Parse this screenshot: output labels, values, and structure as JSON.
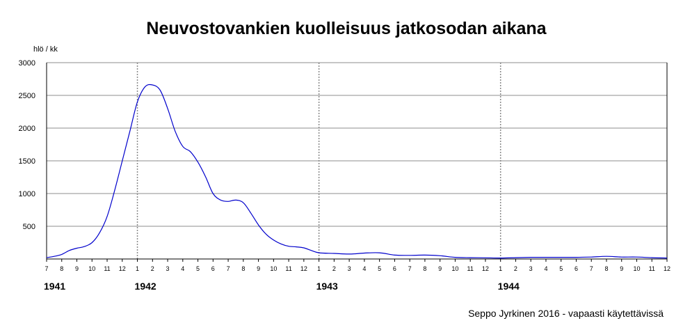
{
  "chart_data": {
    "type": "line",
    "title": "Neuvostovankien kuolleisuus jatkosodan aikana",
    "ylabel": "hlö / kk",
    "xlabel": "",
    "ylim": [
      0,
      3000
    ],
    "yticks": [
      500,
      1000,
      1500,
      2000,
      2500,
      3000
    ],
    "grid": true,
    "x_month_labels": [
      "7",
      "8",
      "9",
      "10",
      "11",
      "12",
      "1",
      "2",
      "3",
      "4",
      "5",
      "6",
      "7",
      "8",
      "9",
      "10",
      "11",
      "12",
      "1",
      "2",
      "3",
      "4",
      "5",
      "6",
      "7",
      "8",
      "9",
      "10",
      "11",
      "12",
      "1",
      "2",
      "3",
      "4",
      "5",
      "6",
      "7",
      "8",
      "9",
      "10",
      "11",
      "12"
    ],
    "years": [
      {
        "label": "1941",
        "month_index": 0
      },
      {
        "label": "1942",
        "month_index": 6
      },
      {
        "label": "1943",
        "month_index": 18
      },
      {
        "label": "1944",
        "month_index": 30
      }
    ],
    "year_divider_month_index": [
      6,
      18,
      30
    ],
    "series": [
      {
        "x": [
          0,
          0.5,
          1,
          1.5,
          2,
          2.5,
          3,
          3.5,
          4,
          4.5,
          5,
          5.5,
          6,
          6.5,
          7,
          7.5,
          8,
          8.5,
          9,
          9.5,
          10,
          10.5,
          11,
          11.5,
          12,
          12.5,
          13,
          13.5,
          14,
          14.5,
          15,
          15.5,
          16,
          16.5,
          17,
          17.5,
          18,
          19,
          20,
          21,
          22,
          23,
          24,
          25,
          26,
          27,
          28,
          29,
          30,
          31,
          32,
          33,
          34,
          35,
          36,
          37,
          38,
          39,
          40,
          41
        ],
        "values": [
          20,
          40,
          70,
          130,
          165,
          190,
          250,
          400,
          650,
          1050,
          1500,
          1950,
          2400,
          2630,
          2660,
          2580,
          2300,
          1950,
          1720,
          1640,
          1480,
          1260,
          1000,
          900,
          880,
          900,
          860,
          700,
          520,
          380,
          290,
          230,
          195,
          185,
          170,
          130,
          95,
          85,
          75,
          90,
          95,
          60,
          55,
          60,
          50,
          25,
          20,
          18,
          15,
          20,
          25,
          25,
          25,
          25,
          30,
          40,
          30,
          30,
          20,
          15
        ],
        "color": "#0000cc"
      }
    ]
  },
  "credit": "Seppo Jyrkinen 2016 - vapaasti käytettävissä"
}
